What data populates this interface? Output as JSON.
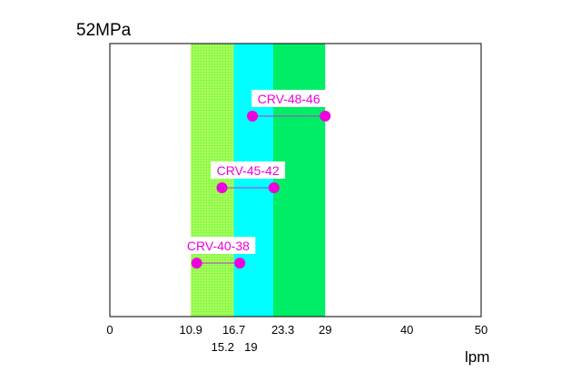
{
  "chart_data": {
    "type": "range",
    "pressure_label": "52MPa",
    "xlabel": "lpm",
    "xlim": [
      0,
      50
    ],
    "ticks_row1": [
      0,
      10.9,
      16.7,
      23.3,
      29,
      40,
      50
    ],
    "ticks_row2": [
      15.2,
      19
    ],
    "bands": [
      {
        "from": 10.9,
        "to": 16.7,
        "color": "#99ff55",
        "hatch": true
      },
      {
        "from": 16.7,
        "to": 22.0,
        "color": "#00ffff",
        "hatch": false
      },
      {
        "from": 22.0,
        "to": 29.0,
        "color": "#00ee66",
        "hatch": false
      }
    ],
    "series": [
      {
        "name": "CRV-40-38",
        "min": 11.7,
        "max": 17.5,
        "level": 1
      },
      {
        "name": "CRV-45-42",
        "min": 15.1,
        "max": 22.1,
        "level": 2
      },
      {
        "name": "CRV-48-46",
        "min": 19.2,
        "max": 29.0,
        "level": 3
      }
    ],
    "marker_color": "#ee00dd",
    "line_color": "#bb33cc",
    "label_color": "#ee00dd"
  }
}
